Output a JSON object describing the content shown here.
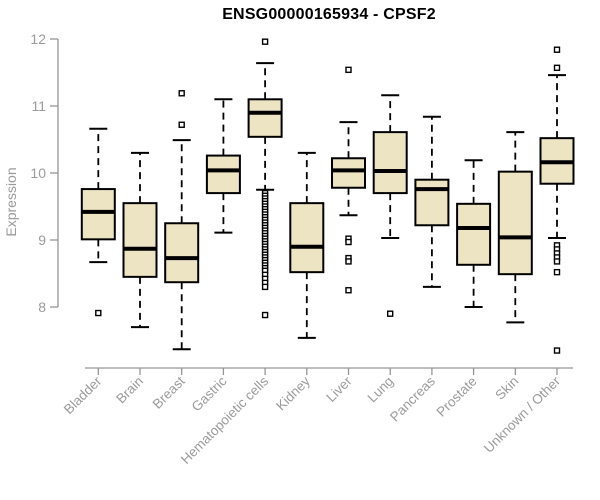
{
  "chart_data": {
    "type": "boxplot",
    "title": "ENSG00000165934 - CPSF2",
    "xlabel": "",
    "ylabel": "Expression",
    "ylim": [
      8,
      12
    ],
    "yticks": [
      8,
      9,
      10,
      11,
      12
    ],
    "grid": false,
    "legend": "none",
    "axis_color": "#969696",
    "label_color": "#9b9b9b",
    "title_color": "#000000",
    "box_fill_color": "#ede4c4",
    "box_line_color": "#000000",
    "categories": [
      "Bladder",
      "Brain",
      "Breast",
      "Gastric",
      "Hematopoietic cells",
      "Kidney",
      "Liver",
      "Lung",
      "Pancreas",
      "Prostate",
      "Skin",
      "Unknown / Other"
    ],
    "boxes": [
      {
        "category": "Bladder",
        "low": 8.67,
        "q1": 9.01,
        "median": 9.42,
        "q3": 9.76,
        "high": 10.66,
        "outliers": [
          7.91
        ]
      },
      {
        "category": "Brain",
        "low": 7.7,
        "q1": 8.45,
        "median": 8.87,
        "q3": 9.55,
        "high": 10.3,
        "outliers": []
      },
      {
        "category": "Breast",
        "low": 7.37,
        "q1": 8.37,
        "median": 8.73,
        "q3": 9.25,
        "high": 10.49,
        "outliers": [
          11.19,
          10.72
        ]
      },
      {
        "category": "Gastric",
        "low": 9.11,
        "q1": 9.7,
        "median": 10.04,
        "q3": 10.26,
        "high": 11.1,
        "outliers": []
      },
      {
        "category": "Hematopoietic cells",
        "low": 9.75,
        "q1": 10.54,
        "median": 10.9,
        "q3": 11.1,
        "high": 11.64,
        "outliers": [
          11.96,
          9.7,
          9.66,
          9.62,
          9.58,
          9.54,
          9.5,
          9.46,
          9.42,
          9.38,
          9.34,
          9.3,
          9.26,
          9.22,
          9.18,
          9.14,
          9.1,
          9.06,
          9.02,
          8.98,
          8.94,
          8.9,
          8.86,
          8.82,
          8.78,
          8.74,
          8.7,
          8.66,
          8.62,
          8.58,
          8.54,
          8.48,
          8.42,
          8.36,
          8.3,
          7.88
        ]
      },
      {
        "category": "Kidney",
        "low": 7.54,
        "q1": 8.52,
        "median": 8.9,
        "q3": 9.55,
        "high": 10.3,
        "outliers": []
      },
      {
        "category": "Liver",
        "low": 9.37,
        "q1": 9.78,
        "median": 10.04,
        "q3": 10.22,
        "high": 10.76,
        "outliers": [
          11.54,
          9.02,
          8.97,
          8.73,
          8.68,
          8.25
        ]
      },
      {
        "category": "Lung",
        "low": 9.03,
        "q1": 9.7,
        "median": 10.03,
        "q3": 10.61,
        "high": 11.16,
        "outliers": [
          7.9
        ]
      },
      {
        "category": "Pancreas",
        "low": 8.3,
        "q1": 9.22,
        "median": 9.76,
        "q3": 9.9,
        "high": 10.84,
        "outliers": []
      },
      {
        "category": "Prostate",
        "low": 8.0,
        "q1": 8.63,
        "median": 9.18,
        "q3": 9.54,
        "high": 10.19,
        "outliers": []
      },
      {
        "category": "Skin",
        "low": 7.77,
        "q1": 8.49,
        "median": 9.04,
        "q3": 10.02,
        "high": 10.61,
        "outliers": []
      },
      {
        "category": "Unknown / Other",
        "low": 9.03,
        "q1": 9.84,
        "median": 10.16,
        "q3": 10.52,
        "high": 11.46,
        "outliers": [
          11.84,
          11.57,
          8.92,
          8.86,
          8.8,
          8.74,
          8.68,
          8.52,
          7.35
        ]
      }
    ]
  }
}
